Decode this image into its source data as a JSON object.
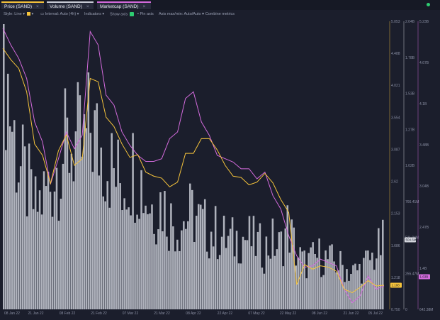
{
  "tabs": [
    {
      "label": "Price (SAND)",
      "color": "#f5c33b"
    },
    {
      "label": "Volume (SAND)",
      "color": "#c9ccd6"
    },
    {
      "label": "Marketcap (SAND)",
      "color": "#d36bdc"
    }
  ],
  "toolbar": {
    "style": "Style: Line",
    "interval": "Interval: Auto (4h)",
    "indicators": "Indicators",
    "show_axis": "Show axis",
    "pin_axis": "Pin axis",
    "axis_max": "Axis max/min: Auto/Auto",
    "combine": "Combine metrics"
  },
  "colors": {
    "price": "#f5c33b",
    "volume": "#c9ccd6",
    "marketcap": "#d36bdc",
    "background": "#1b1e2c"
  },
  "chart_data": {
    "type": "line",
    "x_tick_labels": [
      "08 Jan 22",
      "21 Jan 22",
      "08 Feb 22",
      "21 Feb 22",
      "07 Mar 22",
      "21 Mar 22",
      "08 Apr 22",
      "22 Apr 22",
      "07 May 22",
      "22 May 22",
      "08 Jun 22",
      "21 Jun 22",
      "05 Jul 22"
    ],
    "axes": {
      "price": {
        "ticks": [
          "0.750",
          "1.218",
          "1.686",
          "2.153",
          "2.62",
          "3.087",
          "3.554",
          "4.021",
          "4.488",
          "5.053"
        ],
        "min": 0.75,
        "max": 5.053,
        "last_value_label": "1.108"
      },
      "volume": {
        "ticks": [
          "0",
          "255.47M",
          "511.04M",
          "766.41M",
          "1.02B",
          "1.27B",
          "1.53B",
          "1.78B",
          "2.04B"
        ],
        "min": 0,
        "max": 2040,
        "last_value_label": "504.6M"
      },
      "marketcap": {
        "ticks": [
          "642.38M",
          "1.4B",
          "2.47B",
          "3.04B",
          "3.48B",
          "4.1B",
          "4.67B",
          "5.23B"
        ],
        "min": 642.38,
        "max": 5230,
        "last_value_label": "1.63B"
      }
    },
    "price_values": [
      4.65,
      4.48,
      4.35,
      4.0,
      3.22,
      3.05,
      2.63,
      3.12,
      3.36,
      2.9,
      3.0,
      4.2,
      4.15,
      3.62,
      3.48,
      3.22,
      3.02,
      3.06,
      2.8,
      2.74,
      2.71,
      2.58,
      2.65,
      3.08,
      3.08,
      3.3,
      3.3,
      3.13,
      2.9,
      2.74,
      2.72,
      2.61,
      2.65,
      2.78,
      2.64,
      2.39,
      2.2,
      1.12,
      1.42,
      1.35,
      1.4,
      1.38,
      1.32,
      1.05,
      1.0,
      1.08,
      1.18,
      1.1,
      1.11
    ],
    "marketcap_values": [
      4.95,
      4.7,
      4.5,
      4.2,
      3.55,
      3.25,
      2.62,
      3.0,
      3.4,
      3.15,
      3.35,
      4.9,
      4.7,
      3.95,
      3.8,
      3.4,
      3.2,
      3.05,
      2.96,
      2.96,
      3.0,
      3.3,
      3.4,
      3.9,
      4.0,
      3.55,
      3.35,
      3.05,
      3.0,
      2.95,
      2.85,
      2.85,
      2.7,
      2.8,
      2.45,
      2.25,
      1.85,
      1.55,
      1.38,
      1.4,
      1.5,
      1.45,
      1.4,
      1.05,
      0.85,
      0.95,
      1.25,
      1.05,
      1.1
    ],
    "volume_values": [
      1900,
      1330,
      1000,
      880,
      700,
      800,
      900,
      1050,
      1150,
      1200,
      1100,
      1300,
      1150,
      1100,
      950,
      900,
      1000,
      1000,
      800,
      720,
      780,
      640,
      600,
      640,
      680,
      600,
      560,
      540,
      500,
      480,
      520,
      500,
      460,
      420,
      480,
      430,
      600,
      410,
      320,
      350,
      380,
      350,
      330,
      300,
      260,
      280,
      330,
      380,
      460
    ]
  }
}
